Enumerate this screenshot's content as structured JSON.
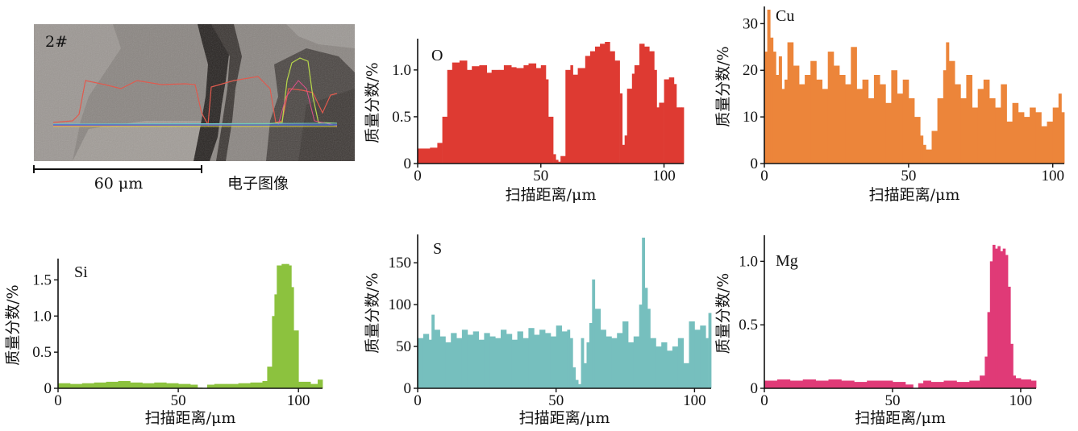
{
  "micrograph": {
    "sample_label": "2#",
    "scale_bar_label": "60 μm",
    "caption": "电子图像"
  },
  "chart_data": [
    {
      "type": "bar",
      "element": "O",
      "color": "#de3a32",
      "xlabel": "扫描距离/μm",
      "ylabel": "质量分数/%",
      "xlim": [
        0,
        108
      ],
      "ylim": [
        0,
        1.3
      ],
      "xticks": [
        0,
        50,
        100
      ],
      "yticks": [
        0,
        0.5,
        1.0
      ],
      "ytick_labels": [
        "0",
        "0.5",
        "1.0"
      ],
      "xtick_labels": [
        "0",
        "50",
        "100"
      ],
      "x": [
        0,
        5,
        8,
        10,
        12,
        14,
        17,
        20,
        22,
        25,
        28,
        30,
        33,
        35,
        38,
        40,
        43,
        45,
        48,
        50,
        52,
        53,
        55,
        56,
        57,
        58,
        60,
        62,
        63,
        65,
        68,
        70,
        72,
        74,
        76,
        78,
        80,
        82,
        83,
        84,
        85,
        87,
        88,
        90,
        92,
        94,
        96,
        97,
        98,
        100,
        102,
        104,
        105,
        106,
        107
      ],
      "values": [
        0.16,
        0.17,
        0.22,
        0.5,
        1.0,
        1.08,
        1.1,
        1.0,
        1.04,
        1.05,
        0.97,
        1.0,
        1.0,
        1.05,
        1.03,
        1.02,
        1.05,
        1.07,
        1.02,
        1.05,
        0.9,
        0.5,
        0.1,
        0.04,
        0.02,
        0.08,
        1.0,
        1.05,
        0.95,
        1.02,
        1.15,
        1.2,
        1.25,
        1.28,
        1.3,
        1.2,
        1.1,
        0.75,
        0.2,
        0.3,
        0.8,
        0.96,
        1.05,
        1.28,
        1.25,
        1.2,
        1.0,
        0.6,
        0.65,
        0.9,
        0.92,
        0.85,
        0.6,
        0.6,
        0.6
      ]
    },
    {
      "type": "bar",
      "element": "Cu",
      "color": "#ec853a",
      "xlabel": "扫描距离/μm",
      "ylabel": "质量分数/%",
      "xlim": [
        0,
        104
      ],
      "ylim": [
        0,
        33
      ],
      "xticks": [
        0,
        50,
        100
      ],
      "yticks": [
        0,
        10,
        20,
        30
      ],
      "ytick_labels": [
        "0",
        "10",
        "20",
        "30"
      ],
      "xtick_labels": [
        "0",
        "50",
        "100"
      ],
      "x": [
        0,
        1,
        2,
        3,
        4,
        5,
        6,
        7,
        8,
        10,
        12,
        14,
        16,
        18,
        20,
        22,
        24,
        26,
        28,
        30,
        32,
        34,
        36,
        38,
        40,
        42,
        44,
        46,
        48,
        50,
        52,
        54,
        55,
        56,
        58,
        60,
        62,
        63,
        64,
        66,
        68,
        70,
        72,
        74,
        76,
        78,
        80,
        82,
        84,
        86,
        88,
        90,
        92,
        94,
        96,
        98,
        100,
        102,
        103
      ],
      "values": [
        24,
        34,
        27,
        24,
        19,
        23,
        16,
        18,
        26,
        21,
        17,
        19,
        22,
        18,
        16,
        24,
        21,
        19,
        17,
        25,
        16,
        18,
        14,
        19,
        17,
        13,
        20,
        15,
        18,
        14,
        10,
        6,
        4,
        3,
        7,
        14,
        20,
        26,
        22,
        17,
        14,
        19,
        12,
        16,
        18,
        14,
        12,
        17,
        9,
        13,
        11,
        10,
        12,
        11,
        8,
        9,
        12,
        15,
        11
      ]
    },
    {
      "type": "bar",
      "element": "Si",
      "color": "#8cc23e",
      "xlabel": "扫描距离/μm",
      "ylabel": "质量分数/%",
      "xlim": [
        0,
        110
      ],
      "ylim": [
        0,
        1.75
      ],
      "xticks": [
        0,
        50,
        100
      ],
      "yticks": [
        0,
        0.5,
        1.0,
        1.5
      ],
      "ytick_labels": [
        "0",
        "0.5",
        "1.0",
        "1.5"
      ],
      "xtick_labels": [
        "0",
        "50",
        "100"
      ],
      "x": [
        0,
        5,
        10,
        15,
        20,
        25,
        30,
        35,
        40,
        45,
        50,
        55,
        58,
        60,
        62,
        65,
        70,
        75,
        80,
        85,
        87,
        89,
        90,
        91,
        93,
        95,
        96,
        97,
        98,
        100,
        105,
        108
      ],
      "values": [
        0.07,
        0.06,
        0.07,
        0.08,
        0.09,
        0.1,
        0.08,
        0.07,
        0.08,
        0.07,
        0.06,
        0.05,
        0.01,
        0.0,
        0.05,
        0.06,
        0.06,
        0.07,
        0.08,
        0.1,
        0.3,
        1.0,
        1.3,
        1.7,
        1.72,
        1.72,
        1.7,
        1.4,
        0.8,
        0.09,
        0.06,
        0.12
      ]
    },
    {
      "type": "bar",
      "element": "S",
      "color": "#76bfbe",
      "xlabel": "扫描距离/μm",
      "ylabel": "质量分数/%",
      "xlim": [
        0,
        106
      ],
      "ylim": [
        0,
        180
      ],
      "xticks": [
        0,
        50,
        100
      ],
      "yticks": [
        0,
        50,
        100,
        150
      ],
      "ytick_labels": [
        "0",
        "50",
        "100",
        "150"
      ],
      "xtick_labels": [
        "0",
        "50",
        "100"
      ],
      "x": [
        0,
        2,
        4,
        5,
        6,
        8,
        10,
        12,
        14,
        16,
        18,
        20,
        22,
        24,
        26,
        28,
        30,
        32,
        34,
        36,
        38,
        40,
        42,
        44,
        46,
        48,
        50,
        52,
        54,
        55,
        56,
        57,
        58,
        59,
        60,
        61,
        62,
        63,
        64,
        66,
        68,
        70,
        72,
        74,
        76,
        78,
        80,
        81,
        82,
        83,
        84,
        86,
        88,
        90,
        92,
        94,
        96,
        98,
        100,
        102,
        104,
        105
      ],
      "values": [
        60,
        65,
        58,
        88,
        70,
        62,
        55,
        66,
        60,
        70,
        64,
        68,
        58,
        66,
        62,
        60,
        70,
        65,
        58,
        68,
        60,
        72,
        64,
        70,
        66,
        62,
        75,
        68,
        70,
        60,
        25,
        10,
        5,
        60,
        30,
        55,
        78,
        130,
        95,
        70,
        62,
        60,
        66,
        80,
        55,
        62,
        100,
        180,
        120,
        95,
        60,
        50,
        55,
        45,
        50,
        60,
        30,
        80,
        70,
        75,
        60,
        90
      ]
    },
    {
      "type": "bar",
      "element": "Mg",
      "color": "#e03a77",
      "xlabel": "扫描距离/μm",
      "ylabel": "质量分数/%",
      "xlim": [
        0,
        106
      ],
      "ylim": [
        0,
        1.18
      ],
      "xticks": [
        0,
        50,
        100
      ],
      "yticks": [
        0,
        0.5,
        1.0
      ],
      "ytick_labels": [
        "0",
        "0.5",
        "1.0"
      ],
      "xtick_labels": [
        "0",
        "50",
        "100"
      ],
      "x": [
        0,
        5,
        10,
        15,
        20,
        25,
        30,
        35,
        40,
        45,
        50,
        55,
        58,
        60,
        62,
        65,
        70,
        75,
        80,
        84,
        86,
        87,
        88,
        89,
        90,
        91,
        92,
        93,
        94,
        95,
        96,
        97,
        98,
        100,
        104
      ],
      "values": [
        0.06,
        0.07,
        0.06,
        0.07,
        0.06,
        0.07,
        0.06,
        0.05,
        0.06,
        0.06,
        0.05,
        0.03,
        0.0,
        0.04,
        0.06,
        0.05,
        0.06,
        0.05,
        0.06,
        0.1,
        0.25,
        0.6,
        1.0,
        1.13,
        1.1,
        1.12,
        1.08,
        1.1,
        1.05,
        0.8,
        0.35,
        0.1,
        0.08,
        0.07,
        0.06
      ]
    }
  ]
}
